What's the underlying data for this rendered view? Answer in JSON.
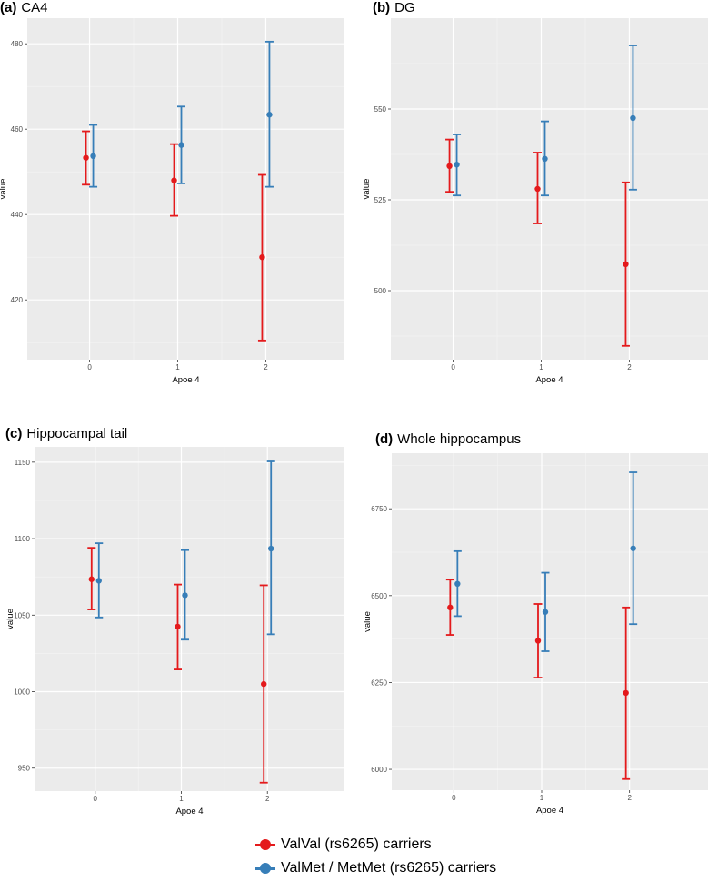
{
  "colors": {
    "valval": "#e41a1c",
    "valmet": "#377eb8",
    "panel_bg": "#ebebeb",
    "grid": "#ffffff"
  },
  "legend": {
    "items": [
      {
        "label": "ValVal (rs6265) carriers",
        "color": "#e41a1c"
      },
      {
        "label": "ValMet / MetMet (rs6265) carriers",
        "color": "#377eb8"
      }
    ]
  },
  "chart_data": [
    {
      "type": "errorbar",
      "tag": "(a)",
      "title": "CA4",
      "xlabel": "Apoe 4",
      "ylabel": "value",
      "categories": [
        "0",
        "1",
        "2"
      ],
      "ylim": [
        406,
        486
      ],
      "yticks": [
        420,
        440,
        460,
        480
      ],
      "series": [
        {
          "name": "ValVal (rs6265) carriers",
          "values": [
            453.3,
            448.0,
            430.0
          ],
          "lower": [
            447.0,
            439.7,
            410.5
          ],
          "upper": [
            459.5,
            456.5,
            449.3
          ]
        },
        {
          "name": "ValMet / MetMet (rs6265) carriers",
          "values": [
            453.7,
            456.3,
            463.4
          ],
          "lower": [
            446.5,
            447.3,
            446.5
          ],
          "upper": [
            461.0,
            465.3,
            480.5
          ]
        }
      ]
    },
    {
      "type": "errorbar",
      "tag": "(b)",
      "title": "DG",
      "xlabel": "Apoe 4",
      "ylabel": "value",
      "categories": [
        "0",
        "1",
        "2"
      ],
      "ylim": [
        481,
        575
      ],
      "yticks": [
        500,
        525,
        550
      ],
      "series": [
        {
          "name": "ValVal (rs6265) carriers",
          "values": [
            534.3,
            528.0,
            507.3
          ],
          "lower": [
            527.2,
            518.5,
            484.8
          ],
          "upper": [
            541.6,
            538.0,
            529.8
          ]
        },
        {
          "name": "ValMet / MetMet (rs6265) carriers",
          "values": [
            534.7,
            536.3,
            547.5
          ],
          "lower": [
            526.2,
            526.2,
            527.8
          ],
          "upper": [
            543.0,
            546.6,
            567.5
          ]
        }
      ]
    },
    {
      "type": "errorbar",
      "tag": "(c)",
      "title": "Hippocampal tail",
      "xlabel": "Apoe 4",
      "ylabel": "value",
      "categories": [
        "0",
        "1",
        "2"
      ],
      "ylim": [
        935,
        1160
      ],
      "yticks": [
        950,
        1000,
        1050,
        1100,
        1150
      ],
      "series": [
        {
          "name": "ValVal (rs6265) carriers",
          "values": [
            1073.5,
            1042.5,
            1005.0
          ],
          "lower": [
            1053.7,
            1014.5,
            940.5
          ],
          "upper": [
            1094.0,
            1070.0,
            1069.5
          ]
        },
        {
          "name": "ValMet / MetMet (rs6265) carriers",
          "values": [
            1072.5,
            1063.0,
            1093.5
          ],
          "lower": [
            1048.5,
            1034.0,
            1037.5
          ],
          "upper": [
            1097.0,
            1092.5,
            1150.5
          ]
        }
      ]
    },
    {
      "type": "errorbar",
      "tag": "(d)",
      "title": "Whole hippocampus",
      "xlabel": "Apoe 4",
      "ylabel": "value",
      "categories": [
        "0",
        "1",
        "2"
      ],
      "ylim": [
        5940,
        6910
      ],
      "yticks": [
        6000,
        6250,
        6500,
        6750
      ],
      "series": [
        {
          "name": "ValVal (rs6265) carriers",
          "values": [
            6466,
            6370,
            6220
          ],
          "lower": [
            6387,
            6264,
            5972
          ],
          "upper": [
            6546,
            6476,
            6466
          ]
        },
        {
          "name": "ValMet / MetMet (rs6265) carriers",
          "values": [
            6534,
            6453,
            6636
          ],
          "lower": [
            6441,
            6340,
            6418
          ],
          "upper": [
            6628,
            6566,
            6855
          ]
        }
      ]
    }
  ]
}
